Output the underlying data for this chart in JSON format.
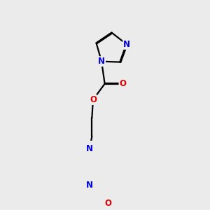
{
  "background_color": "#ebebeb",
  "bond_color": "#000000",
  "atom_colors": {
    "N": "#0000dd",
    "O": "#dd0000"
  },
  "bond_width": 1.6,
  "figsize": [
    3.0,
    3.0
  ],
  "dpi": 100
}
